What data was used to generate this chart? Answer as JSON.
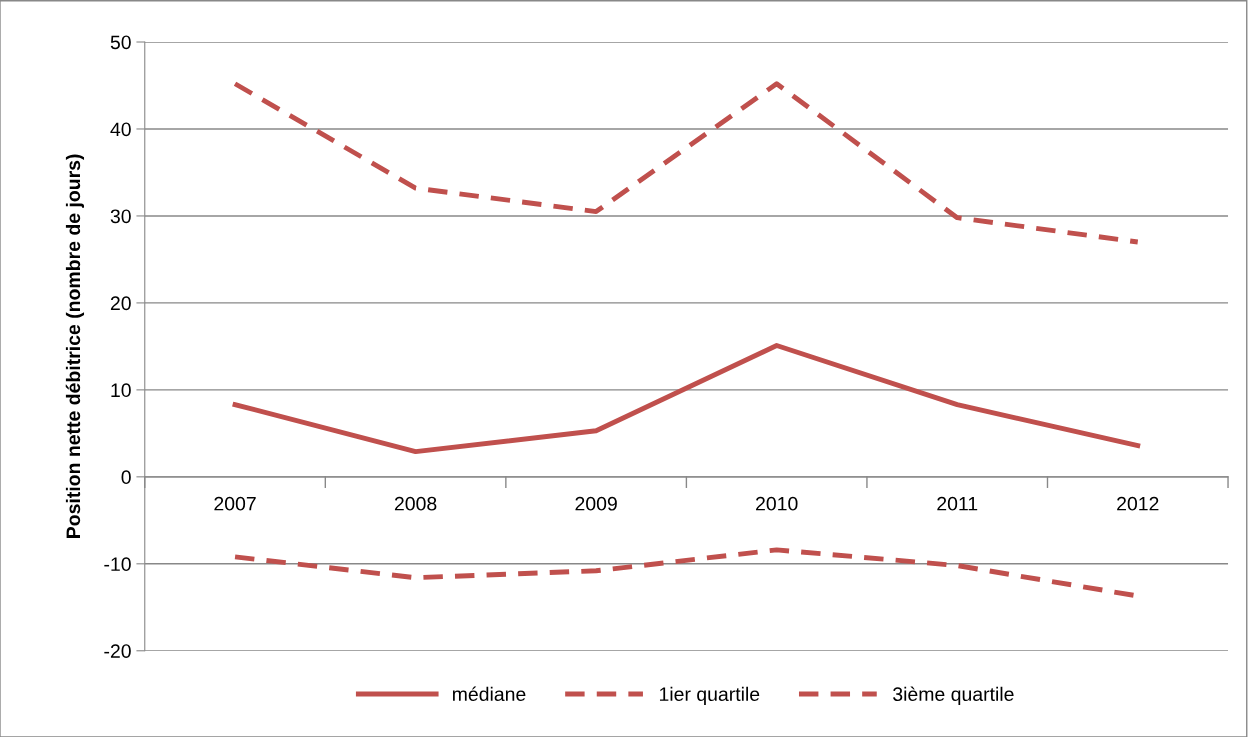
{
  "chart_data": {
    "type": "line",
    "ylabel": "Position nette débitrice (nombre de jours)",
    "categories": [
      "2007",
      "2008",
      "2009",
      "2010",
      "2011",
      "2012"
    ],
    "series": [
      {
        "name": "médiane",
        "color": "#c0504d",
        "line_style": "solid",
        "values": [
          8.3,
          2.9,
          5.3,
          15.1,
          8.3,
          3.6
        ]
      },
      {
        "name": "1ier quartile",
        "color": "#c0504d",
        "line_style": "dashed",
        "values": [
          -9.2,
          -11.6,
          -10.8,
          -8.4,
          -10.2,
          -13.7
        ]
      },
      {
        "name": "3ième quartile",
        "color": "#c0504d",
        "line_style": "dashed",
        "values": [
          45.2,
          33.2,
          30.5,
          45.2,
          29.8,
          27.0
        ]
      }
    ],
    "ylim": [
      -20,
      50
    ],
    "yticks": [
      -20,
      -10,
      0,
      10,
      20,
      30,
      40,
      50
    ],
    "grid": "y",
    "legend": "bottom",
    "marker": "none"
  }
}
